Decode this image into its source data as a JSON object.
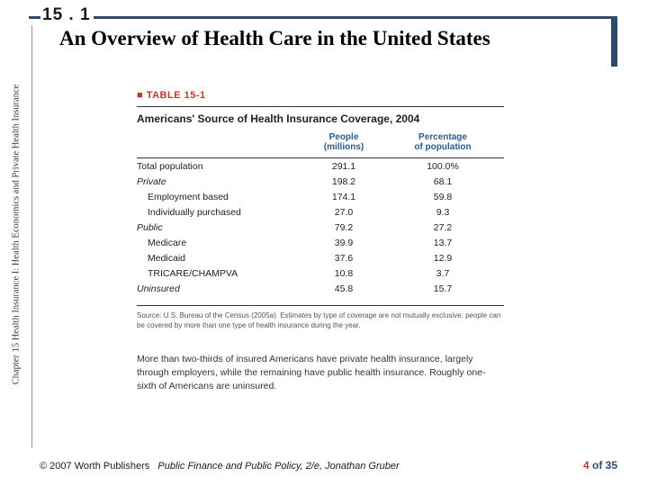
{
  "section_number": "15 . 1",
  "title": "An Overview of Health Care in the United States",
  "sidebar_text": "Chapter 15 Health Insurance I: Health Economics and Private Health Insurance",
  "table": {
    "label": "■ TABLE 15-1",
    "title": "Americans' Source of Health Insurance Coverage, 2004",
    "col2_header_l1": "People",
    "col2_header_l2": "(millions)",
    "col3_header_l1": "Percentage",
    "col3_header_l2": "of population",
    "rows": [
      {
        "label": "Total population",
        "indent": 0,
        "italic": false,
        "people": "291.1",
        "pct": "100.0%"
      },
      {
        "label": "Private",
        "indent": 0,
        "italic": true,
        "people": "198.2",
        "pct": "68.1"
      },
      {
        "label": "Employment based",
        "indent": 1,
        "italic": false,
        "people": "174.1",
        "pct": "59.8"
      },
      {
        "label": "Individually purchased",
        "indent": 1,
        "italic": false,
        "people": "27.0",
        "pct": "9.3"
      },
      {
        "label": "Public",
        "indent": 0,
        "italic": true,
        "people": "79.2",
        "pct": "27.2"
      },
      {
        "label": "Medicare",
        "indent": 1,
        "italic": false,
        "people": "39.9",
        "pct": "13.7"
      },
      {
        "label": "Medicaid",
        "indent": 1,
        "italic": false,
        "people": "37.6",
        "pct": "12.9"
      },
      {
        "label": "TRICARE/CHAMPVA",
        "indent": 1,
        "italic": false,
        "people": "10.8",
        "pct": "3.7"
      },
      {
        "label": "Uninsured",
        "indent": 0,
        "italic": true,
        "people": "45.8",
        "pct": "15.7"
      }
    ],
    "source": "Source: U.S. Bureau of the Census (2005a). Estimates by type of coverage are not mutually exclusive; people can be covered by more than one type of health insurance during the year."
  },
  "caption": "More than two-thirds of insured Americans have private health insurance, largely through employers, while the remaining have public health insurance. Roughly one-sixth of Americans are uninsured.",
  "copyright": "© 2007 Worth Publishers",
  "book": "Public Finance and Public Policy, 2/e, Jonathan Gruber",
  "page_current": "4",
  "page_of": " of 35",
  "colors": {
    "accent_navy": "#2e4a6b",
    "accent_red": "#c0392b",
    "header_blue": "#2e5c8a"
  }
}
